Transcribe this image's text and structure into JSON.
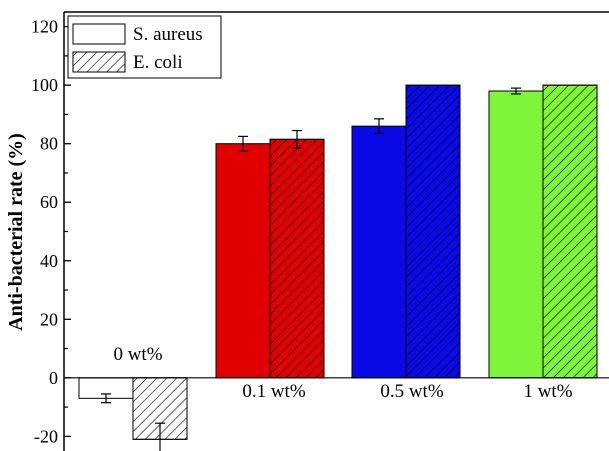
{
  "chart_data": {
    "type": "bar",
    "categories": [
      "0 wt%",
      "0.1 wt%",
      "0.5 wt%",
      "1 wt%"
    ],
    "category_colors": [
      "#ffffff",
      "#e00000",
      "#0a0ae6",
      "#7ff53a"
    ],
    "series": [
      {
        "name": "S. aureus",
        "values": [
          -7,
          80,
          86,
          98
        ],
        "errors": [
          1.5,
          2.5,
          2.5,
          1.0
        ],
        "pattern": "solid"
      },
      {
        "name": "E. coli",
        "values": [
          -21,
          81.5,
          100,
          100
        ],
        "errors": [
          5.5,
          3.0,
          0,
          0
        ],
        "pattern": "hatch"
      }
    ],
    "xlabel": "",
    "ylabel": "Anti-bacterial rate (%)",
    "ylim": [
      -25,
      125
    ],
    "yticks": [
      -20,
      0,
      20,
      40,
      60,
      80,
      100,
      120
    ],
    "legend_placement": "top-left",
    "grid": false
  }
}
